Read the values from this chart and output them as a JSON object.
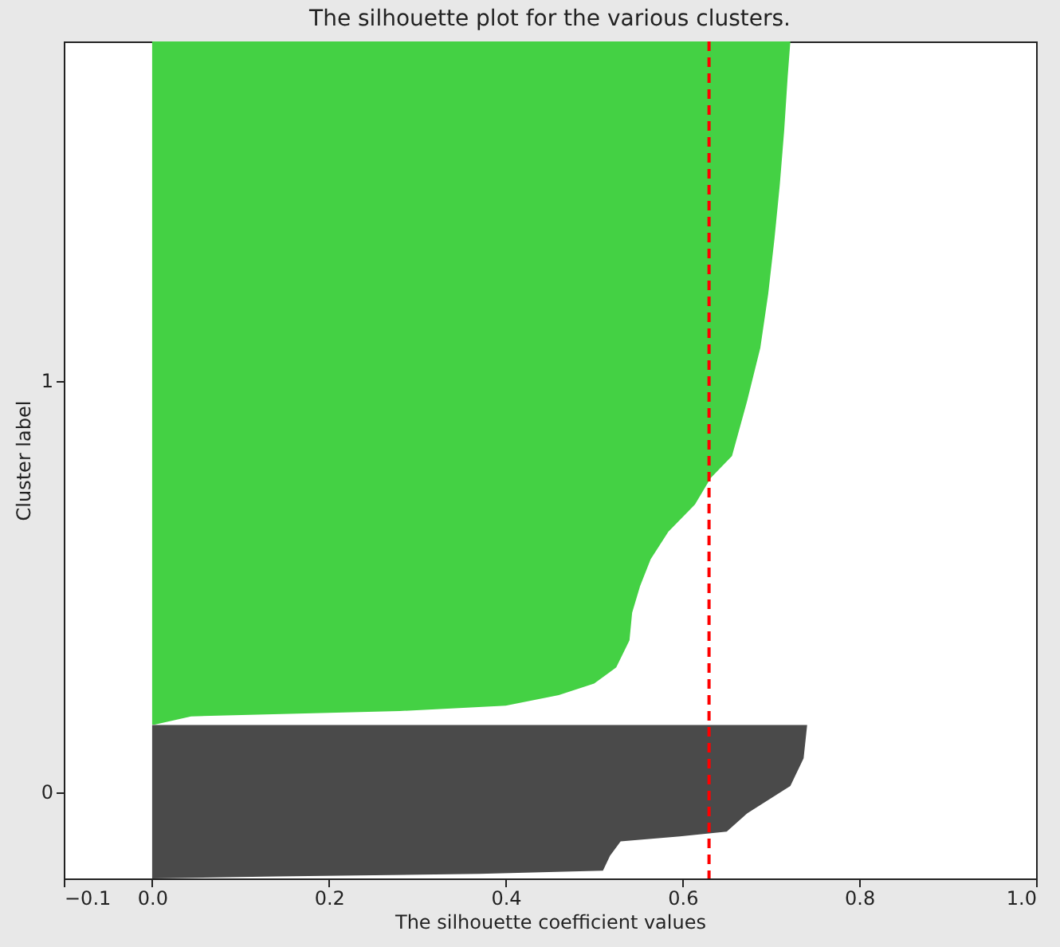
{
  "chart_data": {
    "type": "area",
    "orientation": "horizontal",
    "title": "The silhouette plot for the various clusters.",
    "xlabel": "The silhouette coefficient values",
    "ylabel": "Cluster label",
    "xlim": [
      -0.1,
      1.0
    ],
    "xticks": [
      {
        "value": -0.1,
        "label": "−0.1"
      },
      {
        "value": 0,
        "label": "0.0"
      },
      {
        "value": 0.2,
        "label": "0.2"
      },
      {
        "value": 0.4,
        "label": "0.4"
      },
      {
        "value": 0.6,
        "label": "0.6"
      },
      {
        "value": 0.8,
        "label": "0.8"
      },
      {
        "value": 1,
        "label": "1.0"
      }
    ],
    "ylim": [
      -0.211,
      1.824
    ],
    "yticks": [
      0,
      1
    ],
    "grid": false,
    "legend": false,
    "series": [
      {
        "color": "#4a4a4a",
        "x": [
          -0.211,
          -0.206,
          -0.2,
          -0.192,
          -0.156,
          -0.121,
          -0.109,
          -0.097,
          -0.053,
          0.014,
          0.081,
          0.162
        ],
        "values": [
          0,
          0.14,
          0.37,
          0.51,
          0.518,
          0.53,
          0.597,
          0.65,
          0.673,
          0.722,
          0.737,
          0.741
        ]
      },
      {
        "color": "#44d144",
        "x": [
          0.163,
          0.183,
          0.196,
          0.209,
          0.235,
          0.263,
          0.302,
          0.368,
          0.435,
          0.5,
          0.565,
          0.632,
          0.698,
          0.763,
          0.816,
          0.949,
          1.079,
          1.211,
          1.344,
          1.474,
          1.607,
          1.739,
          1.824
        ],
        "values": [
          0.003,
          0.044,
          0.28,
          0.4,
          0.46,
          0.5,
          0.525,
          0.54,
          0.543,
          0.552,
          0.564,
          0.584,
          0.614,
          0.632,
          0.656,
          0.673,
          0.688,
          0.697,
          0.704,
          0.71,
          0.715,
          0.719,
          0.722
        ]
      }
    ],
    "ref_lines": [
      {
        "axis": "x",
        "value": 0.63,
        "color": "#ff0000",
        "line_style": "dashed"
      }
    ]
  }
}
